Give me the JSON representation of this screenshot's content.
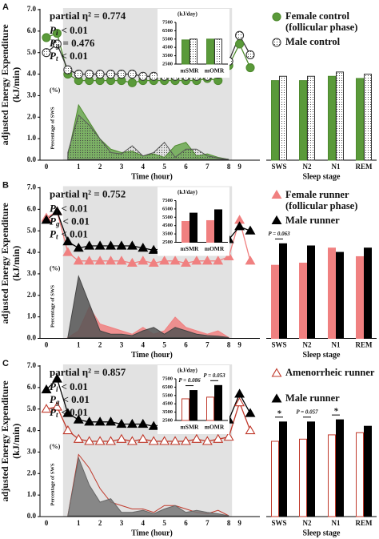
{
  "chart_data": [
    {
      "type": "line",
      "panel": "A",
      "ylabel": "adjusted Energy Expenditure (kJ/min)",
      "xlabel": "Time  (hour)",
      "categories": [
        "0",
        null,
        null,
        "1",
        null,
        "2",
        null,
        "3",
        null,
        "4",
        null,
        "5",
        null,
        "6",
        null,
        "7",
        null,
        "8",
        "9",
        null
      ],
      "ylim": [
        0,
        7
      ],
      "yticks": [
        {
          "value": 0,
          "label": "0.0"
        },
        {
          "value": 1,
          "label": "1.0"
        },
        {
          "value": 2,
          "label": "2.0"
        },
        {
          "value": 3,
          "label": "3.0"
        },
        {
          "value": 4,
          "label": "4.0"
        },
        {
          "value": 5,
          "label": "5.0"
        },
        {
          "value": 6,
          "label": "6.0"
        },
        {
          "value": 7,
          "label": "7.0"
        }
      ],
      "series": [
        {
          "name": "Female control (follicular phase)",
          "color": "#4e8a2e",
          "fill": "#5a9a3a",
          "marker": "circle",
          "values": [
            5.7,
            5.9,
            4.0,
            3.7,
            3.7,
            3.7,
            3.7,
            3.7,
            3.6,
            3.7,
            3.7,
            3.7,
            3.7,
            3.7,
            3.7,
            3.8,
            3.7,
            4.4,
            5.4,
            4.3
          ]
        },
        {
          "name": "Male control",
          "color": "#333333",
          "fill": "#ffffff",
          "pattern": "dots",
          "marker": "circle",
          "values": [
            5.0,
            5.4,
            4.2,
            4.0,
            4.0,
            4.0,
            4.0,
            4.0,
            4.0,
            3.9,
            3.9,
            3.9,
            3.9,
            3.9,
            3.9,
            3.9,
            4.0,
            4.6,
            5.8,
            4.9
          ]
        }
      ],
      "stats": {
        "effect": "partial η² = 0.774",
        "p_values": [
          {
            "symbol": "P",
            "subscript": "i",
            "text": "< 0.01"
          },
          {
            "symbol": "P",
            "subscript": "g",
            "text": "= 0.476"
          },
          {
            "symbol": "P",
            "subscript": "t",
            "text": "< 0.01"
          }
        ]
      },
      "sws": {
        "title": "Percentage of SWS",
        "unit": "(%)",
        "ylim": [
          0,
          100
        ],
        "series": [
          {
            "color": "#4e8a2e",
            "fill": "#6aa84f",
            "values": [
              null,
              null,
              5,
              80,
              55,
              30,
              15,
              10,
              12,
              5,
              8,
              3,
              20,
              25,
              5,
              8,
              3,
              0,
              null,
              null
            ]
          },
          {
            "color": "#555555",
            "fill": "none",
            "pattern": "dots",
            "values": [
              null,
              null,
              10,
              65,
              50,
              30,
              10,
              8,
              20,
              5,
              10,
              25,
              3,
              15,
              15,
              5,
              2,
              0,
              null,
              null
            ]
          }
        ]
      }
    },
    {
      "type": "bar",
      "categories": [
        "mSMR",
        "mOMR"
      ],
      "ylabel": "(kJ/day)",
      "ylim": [
        2500,
        7500
      ],
      "yticks": [
        2500,
        3500,
        4500,
        5500,
        6500,
        7500
      ],
      "series": [
        {
          "color": "#4e8a2e",
          "fill": "#5a9a3a",
          "values": [
            5400,
            5500
          ]
        },
        {
          "color": "#333333",
          "fill": "#ffffff",
          "pattern": "dots",
          "values": [
            5500,
            5500
          ]
        }
      ]
    },
    {
      "type": "bar",
      "categories": [
        "SWS",
        "N2",
        "N1",
        "REM"
      ],
      "xlabel": "Sleep stage",
      "ylim": [
        0,
        7
      ],
      "series": [
        {
          "color": "#4e8a2e",
          "fill": "#5a9a3a",
          "values": [
            3.7,
            3.7,
            3.9,
            3.8
          ]
        },
        {
          "color": "#333333",
          "fill": "#ffffff",
          "pattern": "dots",
          "values": [
            3.9,
            3.9,
            4.1,
            4.0
          ]
        }
      ]
    },
    {
      "type": "line",
      "panel": "B",
      "ylabel": "adjusted Energy Expenditure (kJ/min)",
      "xlabel": "Time  (hour)",
      "categories": [
        "0",
        null,
        null,
        "1",
        null,
        "2",
        null,
        "3",
        null,
        "4",
        null,
        "5",
        null,
        "6",
        null,
        "7",
        null,
        "8",
        "9",
        null
      ],
      "ylim": [
        0,
        7
      ],
      "yticks": [
        {
          "value": 0,
          "label": "0.0"
        },
        {
          "value": 1,
          "label": "1.0"
        },
        {
          "value": 2,
          "label": "2.0"
        },
        {
          "value": 3,
          "label": "3.0"
        },
        {
          "value": 4,
          "label": "4.0"
        },
        {
          "value": 5,
          "label": "5.0"
        },
        {
          "value": 6,
          "label": "6.0"
        },
        {
          "value": 7,
          "label": "7.0"
        }
      ],
      "series": [
        {
          "name": "Female runner (follicular phase)",
          "color": "#f08080",
          "fill": "#f08080",
          "marker": "triangle",
          "values": [
            5.6,
            5.9,
            4.0,
            3.6,
            3.6,
            3.6,
            3.6,
            3.6,
            3.5,
            3.6,
            3.5,
            3.6,
            3.6,
            3.5,
            3.6,
            3.6,
            3.6,
            3.8,
            5.5,
            3.6
          ]
        },
        {
          "name": "Male runner",
          "color": "#000000",
          "fill": "#000000",
          "marker": "triangle",
          "values": [
            5.5,
            5.9,
            4.5,
            4.2,
            4.3,
            4.3,
            4.3,
            4.3,
            4.3,
            4.2,
            4.1,
            4.2,
            4.3,
            4.2,
            4.3,
            4.3,
            4.3,
            4.6,
            5.2,
            5.0
          ]
        }
      ],
      "stats": {
        "effect": "partial η² = 0.752",
        "p_values": [
          {
            "symbol": "P",
            "subscript": "i",
            "text": "< 0.01"
          },
          {
            "symbol": "P",
            "subscript": "g",
            "text": "< 0.01"
          },
          {
            "symbol": "P",
            "subscript": "t",
            "text": "< 0.01"
          }
        ]
      },
      "sws": {
        "title": "Percentage of SWS",
        "unit": "(%)",
        "ylim": [
          0,
          100
        ],
        "series": [
          {
            "color": "#f08080",
            "fill": "#f08080",
            "values": [
              null,
              null,
              0,
              10,
              45,
              20,
              15,
              10,
              5,
              15,
              5,
              10,
              30,
              15,
              10,
              5,
              10,
              0,
              null,
              null
            ]
          },
          {
            "color": "#444444",
            "fill": "#555555",
            "values": [
              null,
              null,
              0,
              90,
              50,
              10,
              5,
              5,
              3,
              10,
              15,
              5,
              15,
              10,
              5,
              3,
              2,
              0,
              null,
              null
            ]
          }
        ]
      }
    },
    {
      "type": "bar",
      "categories": [
        "mSMR",
        "mOMR"
      ],
      "ylabel": "(kJ/day)",
      "ylim": [
        2500,
        7500
      ],
      "yticks": [
        2500,
        3500,
        4500,
        5500,
        6500,
        7500
      ],
      "series": [
        {
          "color": "#f08080",
          "fill": "#f08080",
          "values": [
            5000,
            5100
          ]
        },
        {
          "color": "#000000",
          "fill": "#000000",
          "values": [
            6000,
            6400
          ]
        }
      ]
    },
    {
      "type": "bar",
      "categories": [
        "SWS",
        "N2",
        "N1",
        "REM"
      ],
      "xlabel": "Sleep stage",
      "ylim": [
        0,
        7
      ],
      "series": [
        {
          "color": "#f08080",
          "fill": "#f08080",
          "values": [
            3.4,
            3.5,
            4.2,
            3.8
          ]
        },
        {
          "color": "#000000",
          "fill": "#000000",
          "values": [
            4.4,
            4.3,
            4.0,
            4.2
          ]
        }
      ],
      "annotations": [
        {
          "text": "P = 0.063",
          "category": "SWS"
        }
      ]
    },
    {
      "type": "line",
      "panel": "C",
      "ylabel": "adjusted Energy Expenditure (kJ/min)",
      "xlabel": "Time  (hour)",
      "categories": [
        "0",
        null,
        null,
        "1",
        null,
        "2",
        null,
        "3",
        null,
        "4",
        null,
        "5",
        null,
        "6",
        null,
        "7",
        null,
        "8",
        "9",
        null
      ],
      "ylim": [
        0,
        7
      ],
      "yticks": [
        {
          "value": 0,
          "label": "0.0"
        },
        {
          "value": 1,
          "label": "1.0"
        },
        {
          "value": 2,
          "label": "2.0"
        },
        {
          "value": 3,
          "label": "3.0"
        },
        {
          "value": 4,
          "label": "4.0"
        },
        {
          "value": 5,
          "label": "5.0"
        },
        {
          "value": 6,
          "label": "6.0"
        },
        {
          "value": 7,
          "label": "7.0"
        }
      ],
      "series": [
        {
          "name": "Amenorrheic runner",
          "color": "#c0392b",
          "fill": "#ffffff",
          "marker": "triangle",
          "values": [
            5.0,
            5.1,
            4.0,
            3.6,
            3.5,
            3.5,
            3.5,
            3.6,
            3.5,
            3.6,
            3.5,
            3.5,
            3.5,
            3.5,
            3.6,
            3.5,
            3.6,
            3.7,
            5.3,
            4.0
          ]
        },
        {
          "name": "Male runner",
          "color": "#000000",
          "fill": "#000000",
          "marker": "triangle",
          "values": [
            5.9,
            6.4,
            4.8,
            4.5,
            4.4,
            4.4,
            4.4,
            4.3,
            4.3,
            4.3,
            4.2,
            4.3,
            4.3,
            4.3,
            4.4,
            4.3,
            4.4,
            4.5,
            5.7,
            4.8
          ]
        }
      ],
      "stats": {
        "effect": "partial η² = 0.857",
        "p_values": [
          {
            "symbol": "P",
            "subscript": "i",
            "text": "< 0.01"
          },
          {
            "symbol": "P",
            "subscript": "g",
            "text": "< 0.01"
          },
          {
            "symbol": "P",
            "subscript": "t",
            "text": "< 0.01"
          }
        ]
      },
      "sws": {
        "title": "Percentage of SWS",
        "unit": "(%)",
        "ylim": [
          0,
          100
        ],
        "series": [
          {
            "color": "#c0392b",
            "fill": "none",
            "values": [
              null,
              null,
              0,
              90,
              70,
              40,
              20,
              15,
              10,
              10,
              5,
              15,
              15,
              10,
              5,
              3,
              8,
              0,
              null,
              null
            ]
          },
          {
            "color": "#666666",
            "fill": "#777777",
            "values": [
              null,
              null,
              0,
              85,
              45,
              20,
              25,
              5,
              5,
              8,
              3,
              10,
              15,
              5,
              8,
              5,
              3,
              0,
              null,
              null
            ]
          }
        ]
      }
    },
    {
      "type": "bar",
      "categories": [
        "mSMR",
        "mOMR"
      ],
      "ylabel": "(kJ/day)",
      "ylim": [
        2500,
        7500
      ],
      "yticks": [
        2500,
        3500,
        4500,
        5500,
        6500,
        7500
      ],
      "series": [
        {
          "color": "#c0392b",
          "fill": "#ffffff",
          "values": [
            5100,
            5300
          ]
        },
        {
          "color": "#000000",
          "fill": "#000000",
          "values": [
            6100,
            6700
          ]
        }
      ],
      "annotations": [
        {
          "text": "P = 0.086",
          "category": "mSMR"
        },
        {
          "text": "P = 0.053",
          "category": "mOMR"
        }
      ]
    },
    {
      "type": "bar",
      "categories": [
        "SWS",
        "N2",
        "N1",
        "REM"
      ],
      "xlabel": "Sleep stage",
      "ylim": [
        0,
        7
      ],
      "series": [
        {
          "color": "#c0392b",
          "fill": "#ffffff",
          "values": [
            3.5,
            3.6,
            3.8,
            3.9
          ]
        },
        {
          "color": "#000000",
          "fill": "#000000",
          "values": [
            4.4,
            4.4,
            4.5,
            4.2
          ]
        }
      ],
      "annotations": [
        {
          "text": "*",
          "category": "SWS"
        },
        {
          "text": "P = 0.057",
          "category": "N2"
        },
        {
          "text": "*",
          "category": "N1"
        }
      ]
    }
  ]
}
